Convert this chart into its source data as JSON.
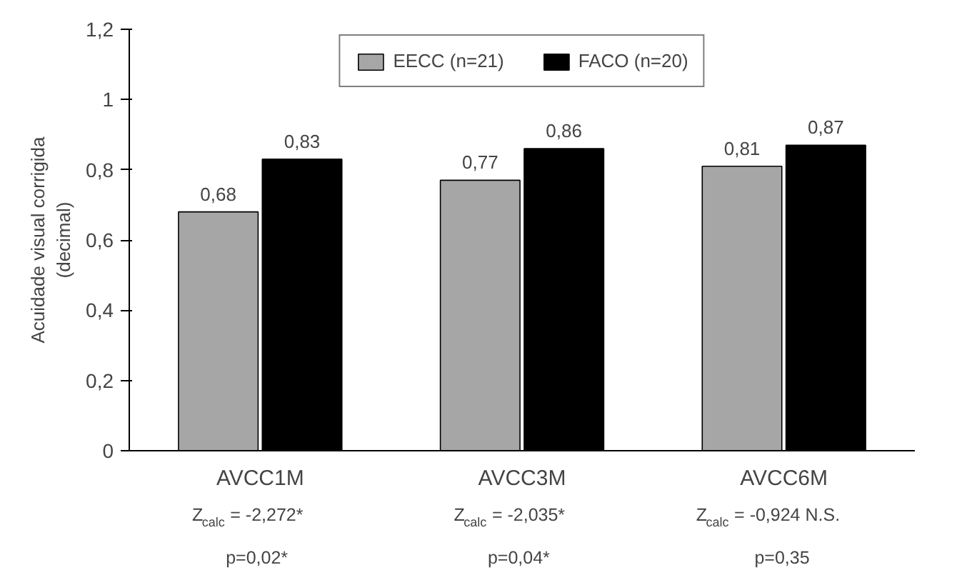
{
  "chart_data": {
    "type": "bar",
    "ylabel": "Acuidade visual corrigida\n(decimal)",
    "categories": [
      "AVCC1M",
      "AVCC3M",
      "AVCC6M"
    ],
    "series": [
      {
        "name": "EECC (n=21)",
        "color": "#a6a6a6",
        "values": [
          0.68,
          0.77,
          0.81
        ],
        "value_labels": [
          "0,68",
          "0,77",
          "0,81"
        ]
      },
      {
        "name": "FACO (n=20)",
        "color": "#000000",
        "values": [
          0.83,
          0.86,
          0.87
        ],
        "value_labels": [
          "0,83",
          "0,86",
          "0,87"
        ]
      }
    ],
    "ylim": [
      0,
      1.2
    ],
    "yticks": [
      {
        "value": 0,
        "label": "0"
      },
      {
        "value": 0.2,
        "label": "0,2"
      },
      {
        "value": 0.4,
        "label": "0,4"
      },
      {
        "value": 0.6,
        "label": "0,6"
      },
      {
        "value": 0.8,
        "label": "0,8"
      },
      {
        "value": 1,
        "label": "1"
      },
      {
        "value": 1.2,
        "label": "1,2"
      }
    ],
    "annotations": [
      "Z$_{calc}$ = -2,272*",
      "p=0,02*",
      "Z$_{calc}$ = -2,035*",
      "p=0,04*",
      "Z$_{calc}$ = -0,924 N.S.",
      "p=0,35"
    ],
    "legend": "top",
    "grid": false
  }
}
